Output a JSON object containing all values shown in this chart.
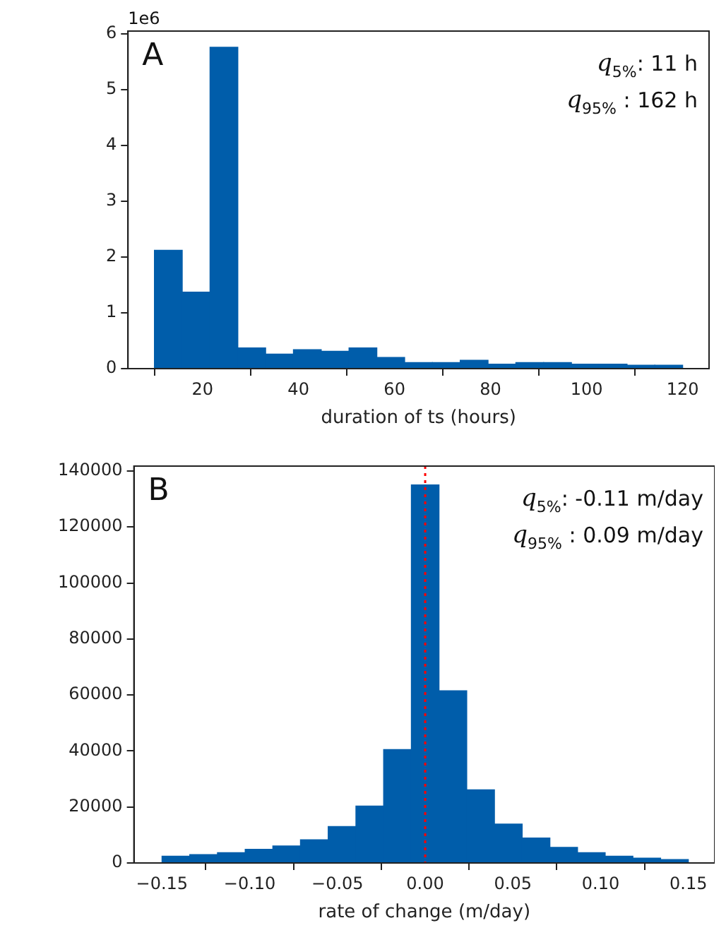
{
  "chart_data": [
    {
      "type": "histogram",
      "bins": [
        10,
        15.789,
        21.579,
        27.368,
        33.158,
        38.947,
        44.737,
        50.526,
        56.316,
        62.105,
        67.895,
        73.684,
        79.474,
        85.263,
        91.053,
        96.842,
        102.632,
        108.421,
        114.211,
        120
      ],
      "values": [
        2.12,
        1.37,
        5.76,
        0.37,
        0.26,
        0.34,
        0.31,
        0.37,
        0.2,
        0.11,
        0.11,
        0.15,
        0.08,
        0.11,
        0.11,
        0.08,
        0.08,
        0.06,
        0.06
      ],
      "color": "#005daa",
      "xlabel": "duration of ts (hours)",
      "xlim": [
        4.5,
        125.5
      ],
      "xticks": [
        20,
        40,
        60,
        80,
        100,
        120
      ],
      "ylim": [
        0,
        6.05
      ],
      "yticks": [
        0,
        1,
        2,
        3,
        4,
        5,
        6
      ],
      "grid": false,
      "annotations": [
        "1e6",
        "A",
        "q$_{5%}$: 11 h",
        "q$_{95%}$ : 162 h"
      ]
    },
    {
      "type": "histogram",
      "bins": [
        -0.15,
        -0.1342,
        -0.1184,
        -0.1026,
        -0.0868,
        -0.0711,
        -0.0553,
        -0.0395,
        -0.0237,
        -0.0079,
        0.0079,
        0.0237,
        0.0395,
        0.0553,
        0.0711,
        0.0868,
        0.1026,
        0.1184,
        0.1342,
        0.15
      ],
      "values": [
        2400,
        3000,
        3700,
        4900,
        6100,
        8300,
        13000,
        20300,
        40500,
        135000,
        61500,
        26100,
        13900,
        8900,
        5600,
        3700,
        2400,
        1700,
        1200
      ],
      "color": "#005daa",
      "xlabel": "rate of change (m/day)",
      "xlim": [
        -0.166,
        0.165
      ],
      "xticks": [
        {
          "value": -0.15,
          "label": "−0.15"
        },
        {
          "value": -0.1,
          "label": "−0.10"
        },
        {
          "value": -0.05,
          "label": "−0.05"
        },
        {
          "value": 0,
          "label": "0.00"
        },
        {
          "value": 0.05,
          "label": "0.05"
        },
        {
          "value": 0.1,
          "label": "0.10"
        },
        {
          "value": 0.15,
          "label": "0.15"
        }
      ],
      "ylim": [
        0,
        141750
      ],
      "yticks": [
        0,
        20000,
        40000,
        60000,
        80000,
        100000,
        120000,
        140000
      ],
      "grid": false,
      "ref_lines": [
        {
          "axis": "x",
          "value": 0,
          "color": "#ff0000",
          "line_style": "dotted"
        }
      ],
      "annotations": [
        "B",
        "q$_{5%}$: -0.11 m/day",
        "q$_{95%}$ : 0.09 m/day"
      ]
    }
  ]
}
